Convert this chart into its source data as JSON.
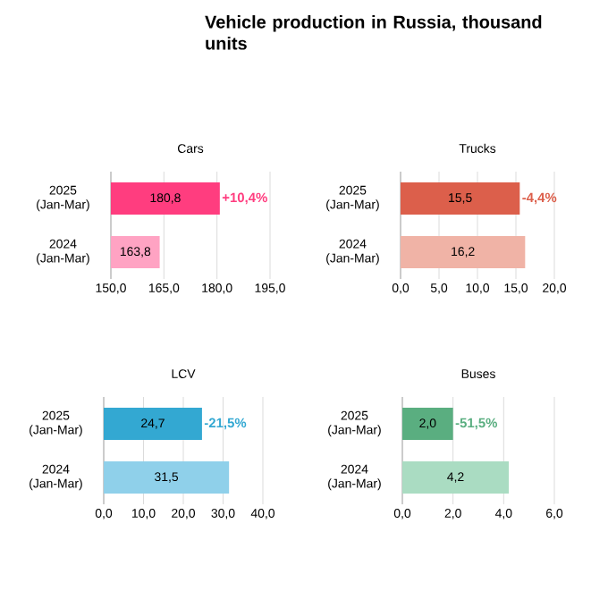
{
  "chart_data": [
    {
      "type": "bar",
      "orientation": "horizontal",
      "title": "Cars",
      "categories": [
        "2025 (Jan-Mar)",
        "2024 (Jan-Mar)"
      ],
      "values": [
        180.8,
        163.8
      ],
      "colors": [
        "#ff3d7f",
        "#ffa3c3"
      ],
      "value_labels": [
        "180,8",
        "163,8"
      ],
      "xlim": [
        150,
        195
      ],
      "xticks": [
        {
          "value": 150,
          "label": "150,0"
        },
        {
          "value": 165,
          "label": "165,0"
        },
        {
          "value": 180,
          "label": "180,0"
        },
        {
          "value": 195,
          "label": "195,0"
        }
      ],
      "grid": "x",
      "annotations": [
        "+10,4%"
      ]
    },
    {
      "type": "bar",
      "orientation": "horizontal",
      "title": "Trucks",
      "categories": [
        "2025 (Jan-Mar)",
        "2024 (Jan-Mar)"
      ],
      "values": [
        15.5,
        16.2
      ],
      "colors": [
        "#dc5f4b",
        "#f0b3a6"
      ],
      "value_labels": [
        "15,5",
        "16,2"
      ],
      "xlim": [
        0,
        20
      ],
      "xticks": [
        {
          "value": 0,
          "label": "0,0"
        },
        {
          "value": 5,
          "label": "5,0"
        },
        {
          "value": 10,
          "label": "10,0"
        },
        {
          "value": 15,
          "label": "15,0"
        },
        {
          "value": 20,
          "label": "20,0"
        }
      ],
      "grid": "x",
      "annotations": [
        "-4,4%"
      ]
    },
    {
      "type": "bar",
      "orientation": "horizontal",
      "title": "LCV",
      "categories": [
        "2025 (Jan-Mar)",
        "2024 (Jan-Mar)"
      ],
      "values": [
        24.7,
        31.5
      ],
      "colors": [
        "#33a8d2",
        "#8fd0ea"
      ],
      "value_labels": [
        "24,7",
        "31,5"
      ],
      "xlim": [
        0,
        40
      ],
      "xticks": [
        {
          "value": 0,
          "label": "0,0"
        },
        {
          "value": 10,
          "label": "10,0"
        },
        {
          "value": 20,
          "label": "20,0"
        },
        {
          "value": 30,
          "label": "30,0"
        },
        {
          "value": 40,
          "label": "40,0"
        }
      ],
      "grid": "x",
      "annotations": [
        "-21,5%"
      ]
    },
    {
      "type": "bar",
      "orientation": "horizontal",
      "title": "Buses",
      "categories": [
        "2025 (Jan-Mar)",
        "2024 (Jan-Mar)"
      ],
      "values": [
        2.0,
        4.2
      ],
      "colors": [
        "#5aae80",
        "#aadcc2"
      ],
      "value_labels": [
        "2,0",
        "4,2"
      ],
      "xlim": [
        0,
        6
      ],
      "xticks": [
        {
          "value": 0,
          "label": "0,0"
        },
        {
          "value": 2,
          "label": "2,0"
        },
        {
          "value": 4,
          "label": "4,0"
        },
        {
          "value": 6,
          "label": "6,0"
        }
      ],
      "grid": "x",
      "annotations": [
        "-51,5%"
      ]
    },
    {
      "type": "other",
      "title": "Vehicle production in Russia, thousand units"
    }
  ]
}
